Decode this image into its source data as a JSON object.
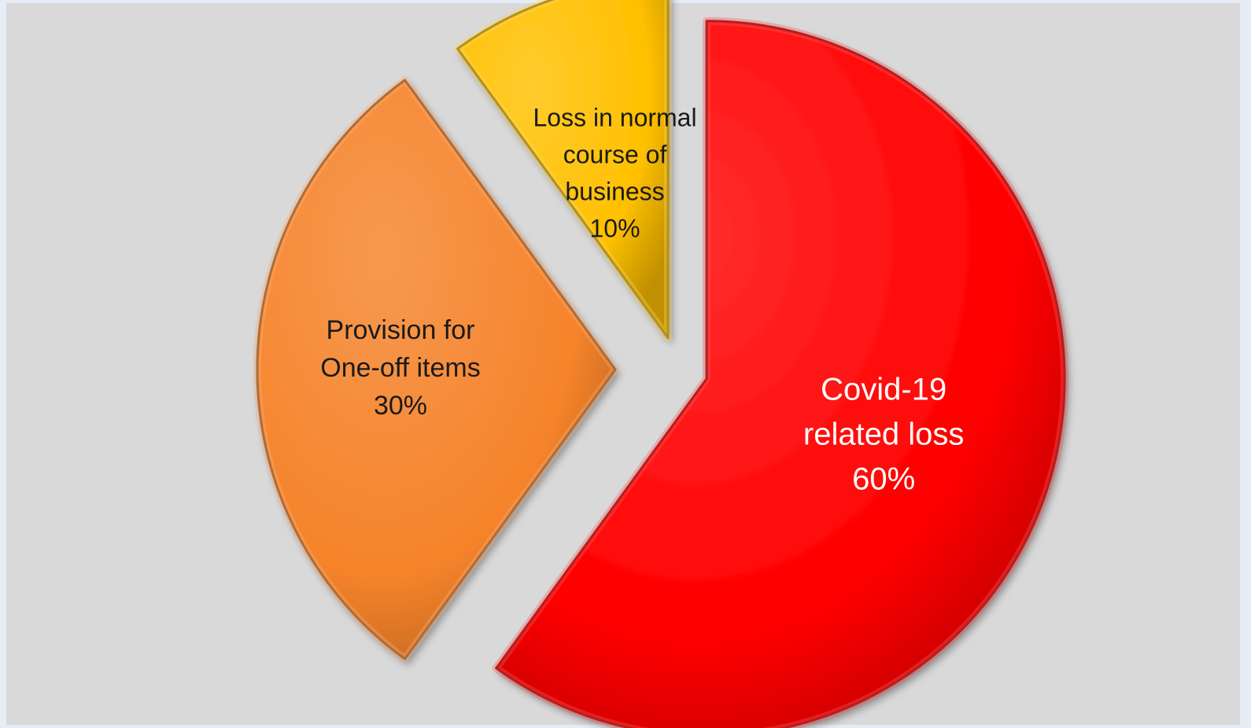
{
  "chart_data": {
    "type": "pie",
    "exploded": true,
    "start_angle_deg": 0,
    "direction": "clockwise",
    "slices": [
      {
        "label_lines": [
          "Covid-19",
          "related loss",
          "60%"
        ],
        "category": "Covid-19 related loss",
        "value": 60,
        "value_label": "60%",
        "color": "#ff0000",
        "label_color": "#ffffff"
      },
      {
        "label_lines": [
          "Provision for",
          "One-off items",
          "30%"
        ],
        "category": "Provision for One-off items",
        "value": 30,
        "value_label": "30%",
        "color": "#f5832a",
        "label_color": "#1a1a1a"
      },
      {
        "label_lines": [
          "Loss in normal",
          "course of",
          "business",
          "10%"
        ],
        "category": "Loss in normal course of business",
        "value": 10,
        "value_label": "10%",
        "color": "#ffc000",
        "label_color": "#1a1a1a"
      }
    ]
  }
}
